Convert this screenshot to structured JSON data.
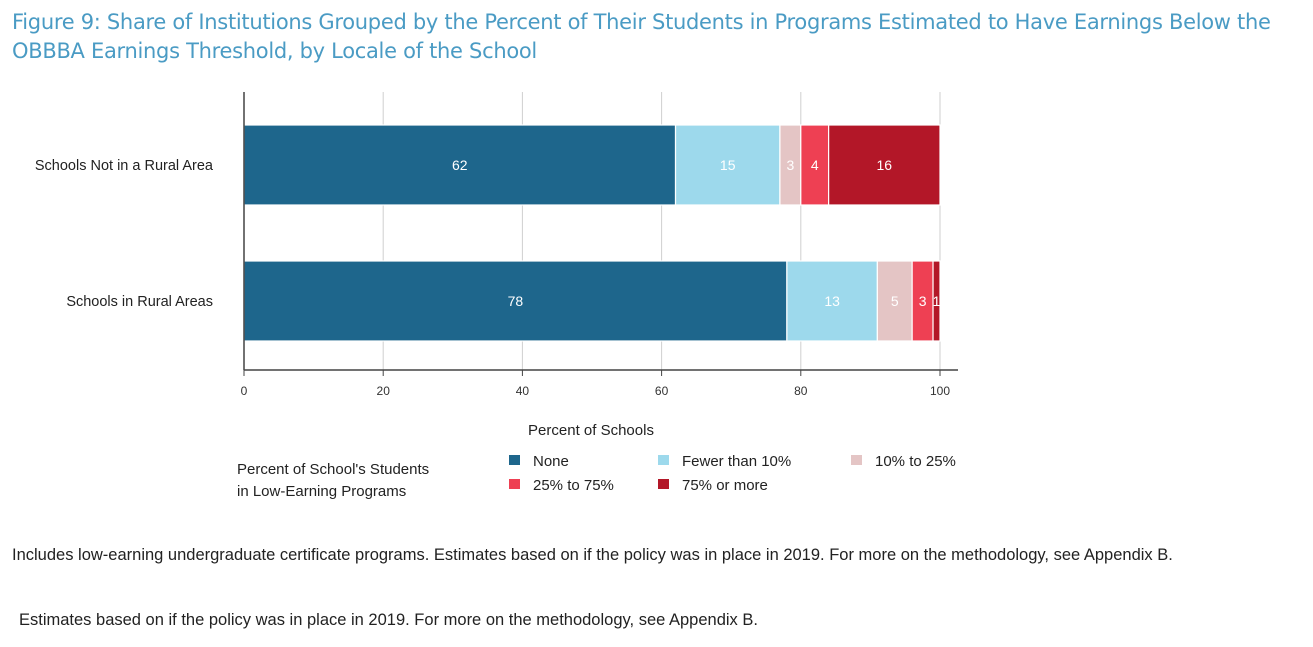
{
  "title": "Figure 9: Share of Institutions Grouped by the Percent of Their Students in Programs Estimated to Have Earnings Below the OBBBA Earnings Threshold, by Locale of the School",
  "notes": [
    "Includes low-earning undergraduate certificate programs. Estimates based on if the policy was in place in 2019. For more on the methodology, see Appendix B.",
    "Estimates based on if the policy was in place in 2019. For more on the methodology, see Appendix B."
  ],
  "chart_data": {
    "type": "bar",
    "orientation": "horizontal",
    "stacked": true,
    "title": "Figure 9: Share of Institutions Grouped by the Percent of Their Students in Programs Estimated to Have Earnings Below the OBBBA Earnings Threshold, by Locale of the School",
    "xlabel": "Percent of Schools",
    "ylabel": "",
    "xlim": [
      0,
      100
    ],
    "xticks": [
      0,
      20,
      40,
      60,
      80,
      100
    ],
    "grid": true,
    "categories": [
      "Schools Not in a Rural Area",
      "Schools in Rural Areas"
    ],
    "legend_title": "Percent of School's Students in Low-Earning Programs",
    "legend_position": "bottom",
    "series": [
      {
        "name": "None",
        "color": "#1e668c",
        "values": [
          62,
          78
        ]
      },
      {
        "name": "Fewer than 10%",
        "color": "#9dd9ec",
        "values": [
          15,
          13
        ]
      },
      {
        "name": "10% to 25%",
        "color": "#e4c5c5",
        "values": [
          3,
          5
        ]
      },
      {
        "name": "25% to 75%",
        "color": "#ee4053",
        "values": [
          4,
          3
        ]
      },
      {
        "name": "75% or more",
        "color": "#b31728",
        "values": [
          16,
          1
        ]
      }
    ]
  }
}
